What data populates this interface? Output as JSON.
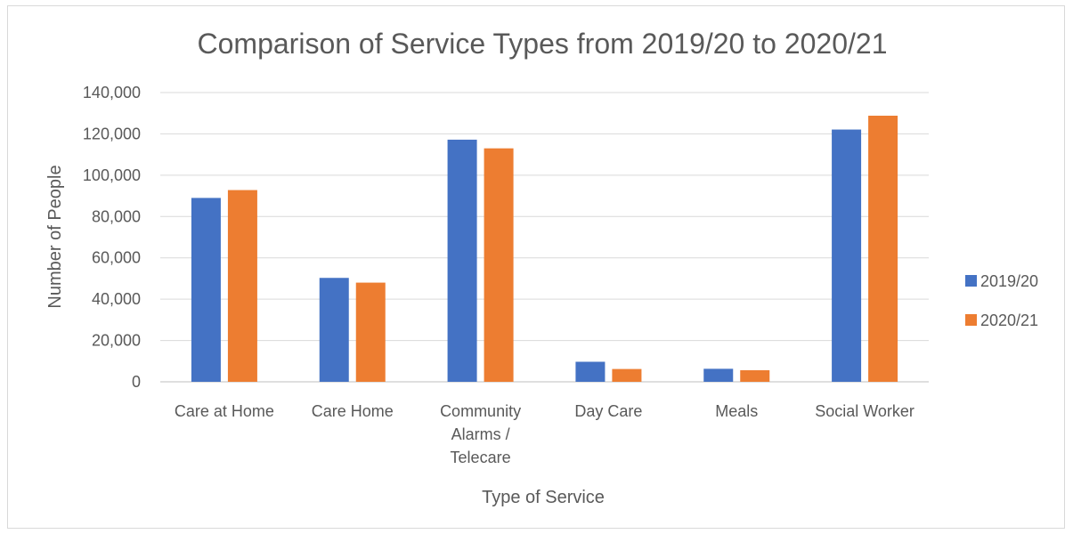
{
  "chart_data": {
    "type": "bar",
    "title": "Comparison of Service Types from 2019/20 to 2020/21",
    "xlabel": "Type of Service",
    "ylabel": "Number of People",
    "categories": [
      [
        "Care at Home"
      ],
      [
        "Care Home"
      ],
      [
        "Community",
        "Alarms /",
        "Telecare"
      ],
      [
        "Day Care"
      ],
      [
        "Meals"
      ],
      [
        "Social Worker"
      ]
    ],
    "series": [
      {
        "name": "2019/20",
        "color": "#4472C4",
        "values": [
          89000,
          50300,
          117200,
          9700,
          6300,
          122100
        ]
      },
      {
        "name": "2020/21",
        "color": "#ED7D31",
        "values": [
          92800,
          48000,
          113000,
          6200,
          5600,
          128800
        ]
      }
    ],
    "ylim": [
      0,
      140000
    ],
    "yticks": [
      "0",
      "20,000",
      "40,000",
      "60,000",
      "80,000",
      "100,000",
      "120,000",
      "140,000"
    ],
    "grid": true,
    "legend_position": "right"
  }
}
